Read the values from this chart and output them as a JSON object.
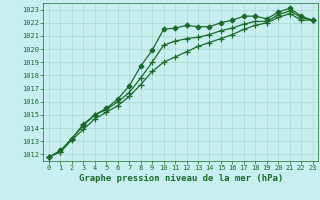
{
  "title": "Graphe pression niveau de la mer (hPa)",
  "background_color": "#c8eef0",
  "grid_color": "#a8d8d0",
  "line_color": "#1a6b2a",
  "text_color": "#1a6b2a",
  "xlim": [
    -0.5,
    23.5
  ],
  "ylim": [
    1011.5,
    1023.5
  ],
  "yticks": [
    1012,
    1013,
    1014,
    1015,
    1016,
    1017,
    1018,
    1019,
    1020,
    1021,
    1022,
    1023
  ],
  "xticks": [
    0,
    1,
    2,
    3,
    4,
    5,
    6,
    7,
    8,
    9,
    10,
    11,
    12,
    13,
    14,
    15,
    16,
    17,
    18,
    19,
    20,
    21,
    22,
    23
  ],
  "series": [
    {
      "x": [
        0,
        1,
        2,
        3,
        4,
        5,
        6,
        7,
        8,
        9,
        10,
        11,
        12,
        13,
        14,
        15,
        16,
        17,
        18,
        19,
        20,
        21,
        22,
        23
      ],
      "y": [
        1011.8,
        1012.3,
        1013.2,
        1014.2,
        1015.0,
        1015.5,
        1016.2,
        1017.2,
        1018.7,
        1019.9,
        1021.5,
        1021.6,
        1021.8,
        1021.7,
        1021.7,
        1022.0,
        1022.2,
        1022.5,
        1022.5,
        1022.3,
        1022.8,
        1023.1,
        1022.5,
        1022.2
      ],
      "marker": "D",
      "markersize": 2.5
    },
    {
      "x": [
        0,
        1,
        2,
        3,
        4,
        5,
        6,
        7,
        8,
        9,
        10,
        11,
        12,
        13,
        14,
        15,
        16,
        17,
        18,
        19,
        20,
        21,
        22,
        23
      ],
      "y": [
        1011.8,
        1012.2,
        1013.2,
        1014.3,
        1015.0,
        1015.4,
        1016.0,
        1016.7,
        1017.8,
        1019.0,
        1020.3,
        1020.6,
        1020.8,
        1020.9,
        1021.1,
        1021.4,
        1021.6,
        1021.9,
        1022.1,
        1022.1,
        1022.6,
        1022.9,
        1022.4,
        1022.2
      ],
      "marker": "+",
      "markersize": 4
    },
    {
      "x": [
        0,
        1,
        2,
        3,
        4,
        5,
        6,
        7,
        8,
        9,
        10,
        11,
        12,
        13,
        14,
        15,
        16,
        17,
        18,
        19,
        20,
        21,
        22,
        23
      ],
      "y": [
        1011.8,
        1012.2,
        1013.1,
        1013.9,
        1014.7,
        1015.2,
        1015.7,
        1016.4,
        1017.3,
        1018.3,
        1019.0,
        1019.4,
        1019.8,
        1020.2,
        1020.5,
        1020.8,
        1021.1,
        1021.5,
        1021.8,
        1022.0,
        1022.4,
        1022.7,
        1022.2,
        1022.2
      ],
      "marker": "+",
      "markersize": 4
    }
  ],
  "ylabel_fontsize": 5.5,
  "xlabel_fontsize": 6.5,
  "tick_labelsize": 5.0,
  "linewidth": 0.9
}
